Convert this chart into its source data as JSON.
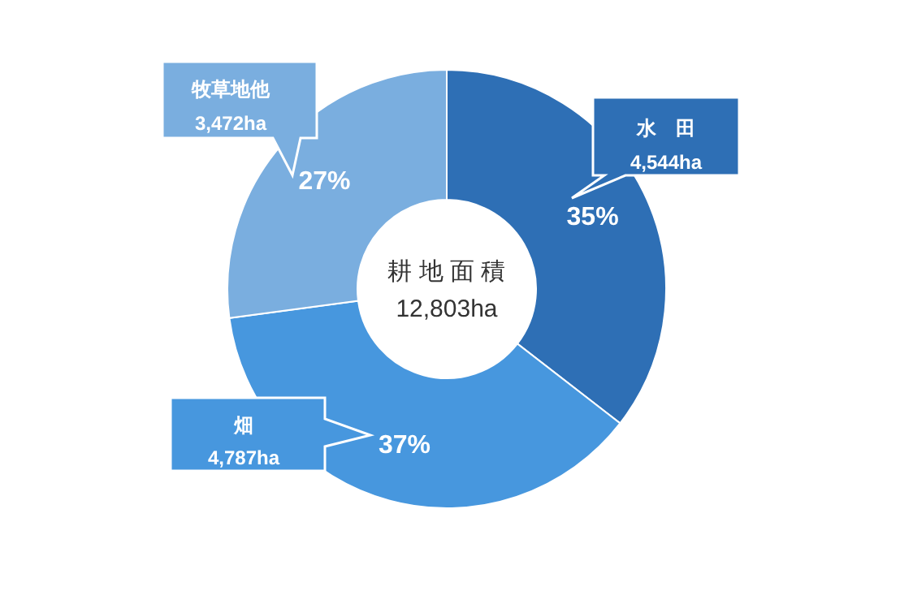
{
  "chart_data": {
    "type": "donut",
    "title": "耕 地 面 積",
    "subtitle": "12,803ha",
    "categories": [
      "水　田",
      "畑",
      "牧草地他"
    ],
    "values": [
      4544,
      4787,
      3472
    ],
    "colors": [
      "#2e6fb5",
      "#4797de",
      "#7aaedf"
    ],
    "value_labels": [
      "4,544ha",
      "4,787ha",
      "3,472ha"
    ],
    "annotations": [
      {
        "text": "35%",
        "x": "水　田"
      },
      {
        "text": "37%",
        "x": "畑"
      },
      {
        "text": "27%",
        "x": "牧草地他"
      }
    ]
  }
}
